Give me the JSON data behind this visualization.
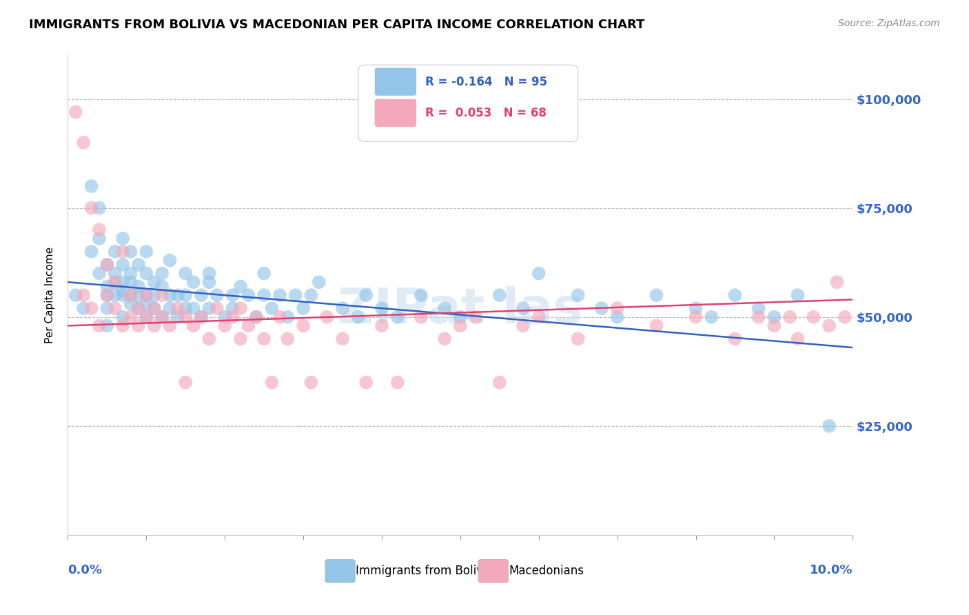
{
  "title": "IMMIGRANTS FROM BOLIVIA VS MACEDONIAN PER CAPITA INCOME CORRELATION CHART",
  "source": "Source: ZipAtlas.com",
  "ylabel": "Per Capita Income",
  "xmin": 0.0,
  "xmax": 0.1,
  "ymin": 0,
  "ymax": 110000,
  "yticks": [
    0,
    25000,
    50000,
    75000,
    100000
  ],
  "ytick_labels": [
    "",
    "$25,000",
    "$50,000",
    "$75,000",
    "$100,000"
  ],
  "blue_color": "#92c5e8",
  "pink_color": "#f4a8bc",
  "blue_line_color": "#3060c0",
  "pink_line_color": "#e04070",
  "text_color": "#3366cc",
  "blue_trend_x": [
    0.0,
    0.1
  ],
  "blue_trend_y": [
    58000,
    43000
  ],
  "pink_trend_x": [
    0.0,
    0.1
  ],
  "pink_trend_y": [
    48000,
    54000
  ],
  "blue_scatter_x": [
    0.001,
    0.002,
    0.003,
    0.003,
    0.004,
    0.004,
    0.004,
    0.005,
    0.005,
    0.005,
    0.005,
    0.005,
    0.006,
    0.006,
    0.006,
    0.006,
    0.007,
    0.007,
    0.007,
    0.007,
    0.007,
    0.007,
    0.008,
    0.008,
    0.008,
    0.008,
    0.008,
    0.009,
    0.009,
    0.009,
    0.009,
    0.01,
    0.01,
    0.01,
    0.01,
    0.01,
    0.011,
    0.011,
    0.011,
    0.012,
    0.012,
    0.012,
    0.013,
    0.013,
    0.013,
    0.014,
    0.014,
    0.015,
    0.015,
    0.015,
    0.016,
    0.016,
    0.017,
    0.017,
    0.018,
    0.018,
    0.018,
    0.019,
    0.02,
    0.021,
    0.021,
    0.022,
    0.023,
    0.024,
    0.025,
    0.025,
    0.026,
    0.027,
    0.028,
    0.029,
    0.03,
    0.031,
    0.032,
    0.035,
    0.037,
    0.038,
    0.04,
    0.042,
    0.045,
    0.048,
    0.05,
    0.055,
    0.058,
    0.06,
    0.065,
    0.068,
    0.07,
    0.075,
    0.08,
    0.082,
    0.085,
    0.088,
    0.09,
    0.093,
    0.097
  ],
  "blue_scatter_y": [
    55000,
    52000,
    80000,
    65000,
    68000,
    60000,
    75000,
    57000,
    62000,
    55000,
    48000,
    52000,
    58000,
    65000,
    55000,
    60000,
    56000,
    62000,
    55000,
    68000,
    50000,
    58000,
    53000,
    60000,
    55000,
    65000,
    58000,
    52000,
    57000,
    62000,
    55000,
    50000,
    55000,
    60000,
    65000,
    53000,
    52000,
    58000,
    55000,
    50000,
    57000,
    60000,
    52000,
    55000,
    63000,
    55000,
    50000,
    55000,
    52000,
    60000,
    58000,
    52000,
    55000,
    50000,
    58000,
    52000,
    60000,
    55000,
    50000,
    55000,
    52000,
    57000,
    55000,
    50000,
    55000,
    60000,
    52000,
    55000,
    50000,
    55000,
    52000,
    55000,
    58000,
    52000,
    50000,
    55000,
    52000,
    50000,
    55000,
    52000,
    50000,
    55000,
    52000,
    60000,
    55000,
    52000,
    50000,
    55000,
    52000,
    50000,
    55000,
    52000,
    50000,
    55000,
    25000
  ],
  "pink_scatter_x": [
    0.001,
    0.002,
    0.002,
    0.003,
    0.003,
    0.004,
    0.004,
    0.005,
    0.005,
    0.006,
    0.006,
    0.007,
    0.007,
    0.008,
    0.008,
    0.009,
    0.009,
    0.01,
    0.01,
    0.011,
    0.011,
    0.012,
    0.012,
    0.013,
    0.014,
    0.015,
    0.015,
    0.016,
    0.017,
    0.018,
    0.019,
    0.02,
    0.021,
    0.022,
    0.022,
    0.023,
    0.024,
    0.025,
    0.026,
    0.027,
    0.028,
    0.03,
    0.031,
    0.033,
    0.035,
    0.038,
    0.04,
    0.042,
    0.045,
    0.048,
    0.05,
    0.052,
    0.055,
    0.058,
    0.06,
    0.065,
    0.07,
    0.075,
    0.08,
    0.085,
    0.088,
    0.09,
    0.092,
    0.093,
    0.095,
    0.097,
    0.098,
    0.099
  ],
  "pink_scatter_y": [
    97000,
    55000,
    90000,
    52000,
    75000,
    48000,
    70000,
    55000,
    62000,
    52000,
    58000,
    48000,
    65000,
    50000,
    55000,
    48000,
    52000,
    50000,
    55000,
    48000,
    52000,
    50000,
    55000,
    48000,
    52000,
    50000,
    35000,
    48000,
    50000,
    45000,
    52000,
    48000,
    50000,
    52000,
    45000,
    48000,
    50000,
    45000,
    35000,
    50000,
    45000,
    48000,
    35000,
    50000,
    45000,
    35000,
    48000,
    35000,
    50000,
    45000,
    48000,
    50000,
    35000,
    48000,
    50000,
    45000,
    52000,
    48000,
    50000,
    45000,
    50000,
    48000,
    50000,
    45000,
    50000,
    48000,
    58000,
    50000
  ]
}
